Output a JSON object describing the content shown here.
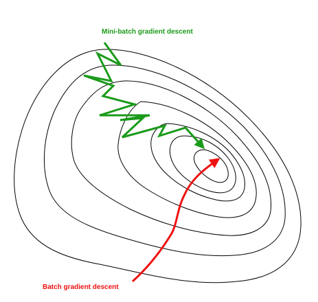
{
  "labels": {
    "mini_batch": "Mini-batch gradient descent",
    "batch": "Batch gradient descent"
  },
  "colors": {
    "contour": "#000000",
    "mini_batch": "#1a9a1a",
    "batch": "#ee1111",
    "background": "#ffffff"
  }
}
